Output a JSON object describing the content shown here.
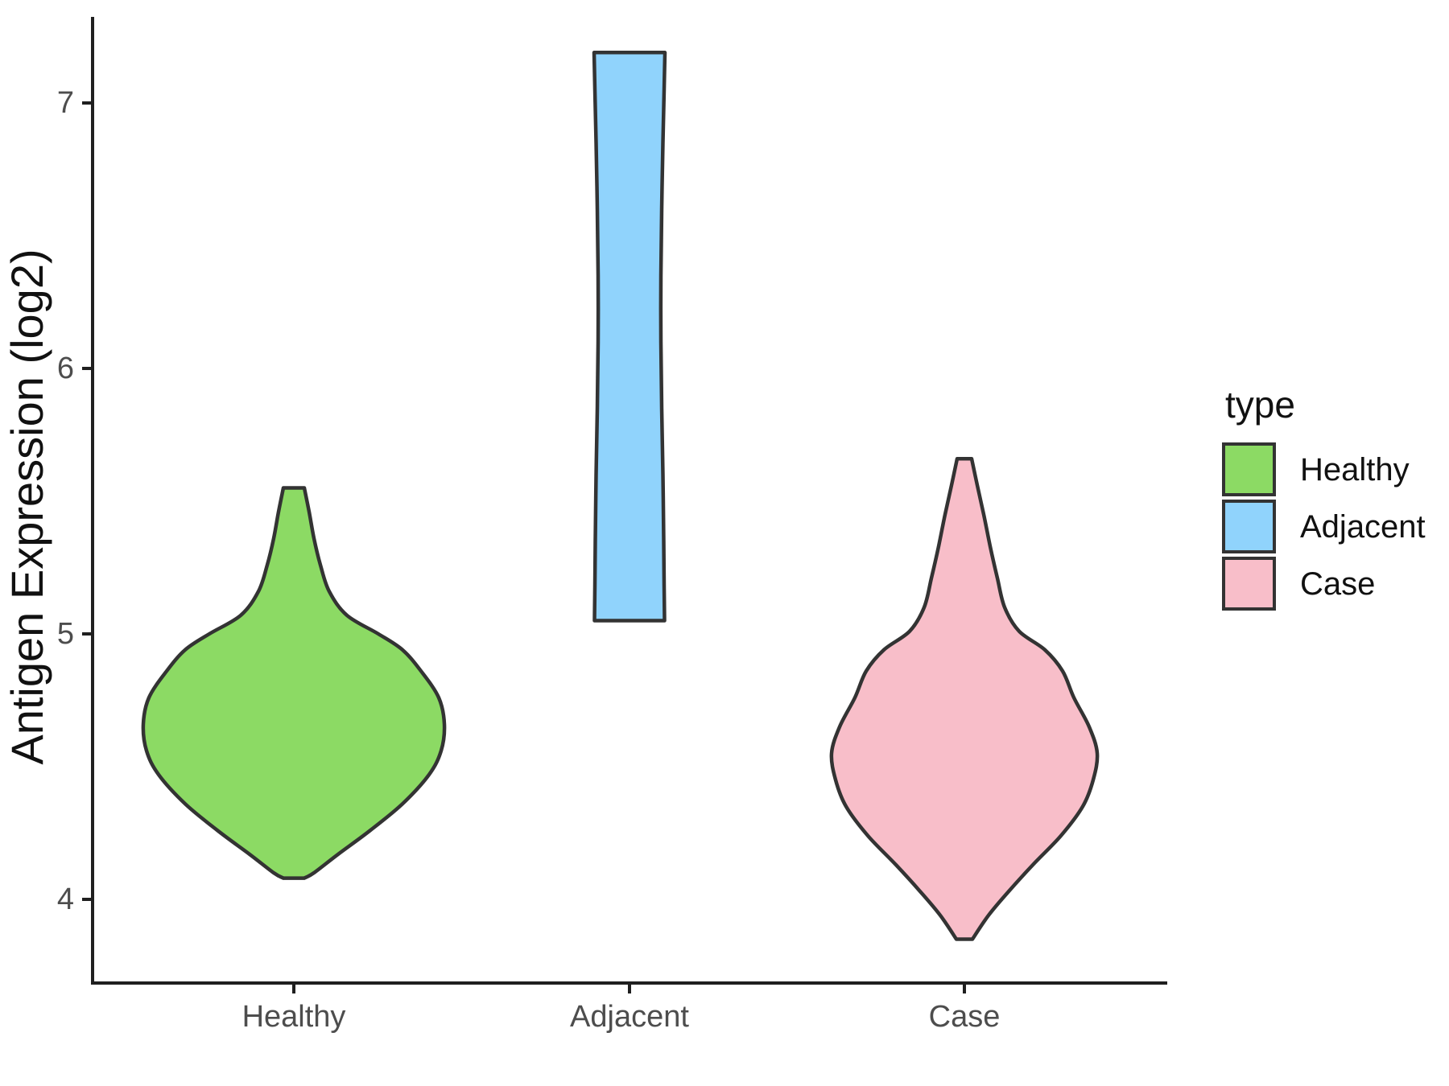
{
  "chart_data": {
    "type": "violin",
    "title": "",
    "xlabel": "",
    "ylabel": "Antigen Expression (log2)",
    "categories": [
      "Healthy",
      "Adjacent",
      "Case"
    ],
    "y_ticks": [
      7,
      6,
      5,
      4
    ],
    "y_tick_labels": [
      "7",
      "6",
      "5",
      "4"
    ],
    "ylim": [
      3.69,
      7.32
    ],
    "grid": false,
    "background": "#ffffff",
    "axis_color": "#1f1f1f",
    "tick_label_color": "#4d4d4d",
    "outline_color": "#333333",
    "legend": {
      "title": "type",
      "position": "right",
      "entries": [
        "Healthy",
        "Adjacent",
        "Case"
      ]
    },
    "series": [
      {
        "name": "Healthy",
        "fill": "#8CDA64",
        "y_min": 4.08,
        "y_max": 5.55,
        "peak_value": 4.66,
        "profile": [
          [
            5.55,
            13
          ],
          [
            5.46,
            19
          ],
          [
            5.36,
            25
          ],
          [
            5.26,
            33
          ],
          [
            5.16,
            44
          ],
          [
            5.07,
            66
          ],
          [
            5.0,
            105
          ],
          [
            4.94,
            135
          ],
          [
            4.86,
            158
          ],
          [
            4.76,
            180
          ],
          [
            4.66,
            187
          ],
          [
            4.56,
            183
          ],
          [
            4.47,
            168
          ],
          [
            4.36,
            135
          ],
          [
            4.26,
            95
          ],
          [
            4.17,
            55
          ],
          [
            4.1,
            25
          ],
          [
            4.08,
            13
          ]
        ]
      },
      {
        "name": "Adjacent",
        "fill": "#90D3FC",
        "y_min": 5.05,
        "y_max": 7.19,
        "peak_value": 7.19,
        "profile": [
          [
            7.19,
            44
          ],
          [
            7.05,
            43
          ],
          [
            6.85,
            41.5
          ],
          [
            6.6,
            40
          ],
          [
            6.35,
            39
          ],
          [
            6.1,
            39
          ],
          [
            5.85,
            40
          ],
          [
            5.6,
            41.5
          ],
          [
            5.35,
            42.5
          ],
          [
            5.18,
            43
          ],
          [
            5.05,
            43.5
          ]
        ]
      },
      {
        "name": "Case",
        "fill": "#F8BEC9",
        "y_min": 3.85,
        "y_max": 5.66,
        "peak_value": 4.55,
        "profile": [
          [
            5.66,
            9
          ],
          [
            5.56,
            16
          ],
          [
            5.45,
            24
          ],
          [
            5.33,
            32
          ],
          [
            5.21,
            41
          ],
          [
            5.1,
            50
          ],
          [
            5.01,
            68
          ],
          [
            4.94,
            100
          ],
          [
            4.86,
            122
          ],
          [
            4.76,
            136
          ],
          [
            4.65,
            155
          ],
          [
            4.55,
            165
          ],
          [
            4.45,
            160
          ],
          [
            4.35,
            147
          ],
          [
            4.24,
            120
          ],
          [
            4.13,
            85
          ],
          [
            4.03,
            55
          ],
          [
            3.94,
            30
          ],
          [
            3.85,
            10
          ]
        ]
      }
    ]
  }
}
